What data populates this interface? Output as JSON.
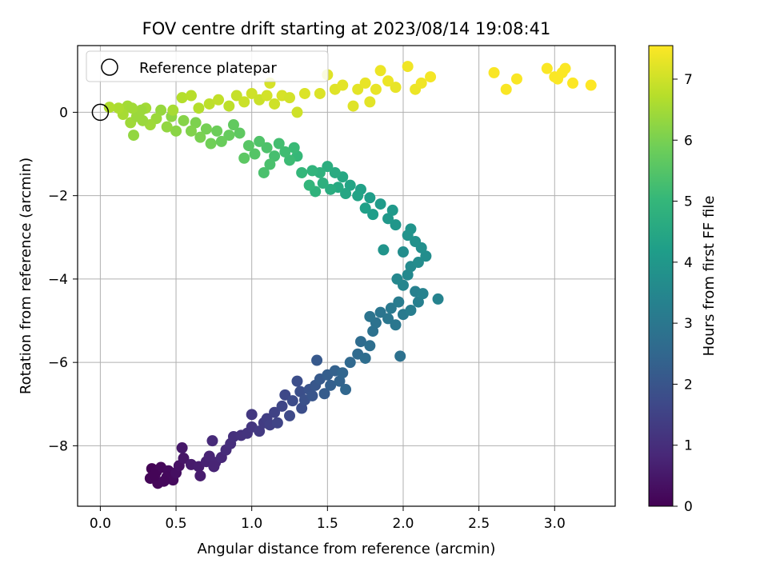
{
  "chart_data": {
    "type": "scatter",
    "title": "FOV centre drift starting at 2023/08/14 19:08:41",
    "xlabel": "Angular distance from reference (arcmin)",
    "ylabel": "Rotation from reference (arcmin)",
    "xlim": [
      -0.15,
      3.4
    ],
    "ylim": [
      -9.45,
      1.6
    ],
    "xticks": [
      0.0,
      0.5,
      1.0,
      1.5,
      2.0,
      2.5,
      3.0
    ],
    "xtick_labels": [
      "0.0",
      "0.5",
      "1.0",
      "1.5",
      "2.0",
      "2.5",
      "3.0"
    ],
    "yticks": [
      0,
      -2,
      -4,
      -6,
      -8
    ],
    "ytick_labels": [
      "0",
      "−2",
      "−4",
      "−6",
      "−8"
    ],
    "grid": true,
    "legend": {
      "position": "top-left",
      "entries": [
        "Reference platepar"
      ]
    },
    "reference_point": {
      "x": 0.0,
      "y": 0.0
    },
    "colorbar": {
      "label": "Hours from first FF file",
      "min": 0,
      "max": 7.55,
      "ticks": [
        0,
        1,
        2,
        3,
        4,
        5,
        6,
        7
      ],
      "tick_labels": [
        "0",
        "1",
        "2",
        "3",
        "4",
        "5",
        "6",
        "7"
      ],
      "colormap": [
        "#440154",
        "#482878",
        "#3e4989",
        "#31688e",
        "#26828e",
        "#1f9e89",
        "#35b779",
        "#6ece58",
        "#b5de2b",
        "#fde725"
      ]
    },
    "colors": {
      "axes": "#000000",
      "grid": "#b0b0b0",
      "background": "#ffffff"
    },
    "points": [
      {
        "x": 0.34,
        "y": -8.55,
        "c": 0.05
      },
      {
        "x": 0.37,
        "y": -8.62,
        "c": 0.1
      },
      {
        "x": 0.4,
        "y": -8.52,
        "c": 0.15
      },
      {
        "x": 0.45,
        "y": -8.6,
        "c": 0.2
      },
      {
        "x": 0.33,
        "y": -8.78,
        "c": 0.1
      },
      {
        "x": 0.38,
        "y": -8.9,
        "c": 0.12
      },
      {
        "x": 0.44,
        "y": -8.75,
        "c": 0.18
      },
      {
        "x": 0.48,
        "y": -8.82,
        "c": 0.22
      },
      {
        "x": 0.5,
        "y": -8.65,
        "c": 0.3
      },
      {
        "x": 0.52,
        "y": -8.48,
        "c": 0.35
      },
      {
        "x": 0.36,
        "y": -8.7,
        "c": 0.08
      },
      {
        "x": 0.42,
        "y": -8.85,
        "c": 0.16
      },
      {
        "x": 0.55,
        "y": -8.3,
        "c": 0.45
      },
      {
        "x": 0.54,
        "y": -8.05,
        "c": 0.5
      },
      {
        "x": 0.6,
        "y": -8.45,
        "c": 0.55
      },
      {
        "x": 0.65,
        "y": -8.5,
        "c": 0.6
      },
      {
        "x": 0.66,
        "y": -8.72,
        "c": 0.58
      },
      {
        "x": 0.7,
        "y": -8.38,
        "c": 0.7
      },
      {
        "x": 0.72,
        "y": -8.25,
        "c": 0.75
      },
      {
        "x": 0.76,
        "y": -8.4,
        "c": 0.8
      },
      {
        "x": 0.8,
        "y": -8.28,
        "c": 0.85
      },
      {
        "x": 0.75,
        "y": -8.5,
        "c": 0.78
      },
      {
        "x": 0.74,
        "y": -7.88,
        "c": 0.9
      },
      {
        "x": 0.83,
        "y": -8.1,
        "c": 0.95
      },
      {
        "x": 0.86,
        "y": -7.95,
        "c": 1.0
      },
      {
        "x": 0.88,
        "y": -7.78,
        "c": 1.05
      },
      {
        "x": 0.93,
        "y": -7.75,
        "c": 1.1
      },
      {
        "x": 0.97,
        "y": -7.7,
        "c": 1.15
      },
      {
        "x": 1.0,
        "y": -7.55,
        "c": 1.2
      },
      {
        "x": 1.0,
        "y": -7.25,
        "c": 1.25
      },
      {
        "x": 1.05,
        "y": -7.65,
        "c": 1.3
      },
      {
        "x": 1.08,
        "y": -7.45,
        "c": 1.35
      },
      {
        "x": 1.1,
        "y": -7.35,
        "c": 1.4
      },
      {
        "x": 1.12,
        "y": -7.5,
        "c": 1.45
      },
      {
        "x": 1.15,
        "y": -7.2,
        "c": 1.5
      },
      {
        "x": 1.17,
        "y": -7.45,
        "c": 1.55
      },
      {
        "x": 1.2,
        "y": -7.05,
        "c": 1.6
      },
      {
        "x": 1.22,
        "y": -6.78,
        "c": 1.65
      },
      {
        "x": 1.25,
        "y": -7.28,
        "c": 1.7
      },
      {
        "x": 1.27,
        "y": -6.92,
        "c": 1.75
      },
      {
        "x": 1.3,
        "y": -6.45,
        "c": 1.8
      },
      {
        "x": 1.32,
        "y": -6.7,
        "c": 1.85
      },
      {
        "x": 1.33,
        "y": -7.1,
        "c": 1.8
      },
      {
        "x": 1.35,
        "y": -6.9,
        "c": 1.9
      },
      {
        "x": 1.38,
        "y": -6.65,
        "c": 1.95
      },
      {
        "x": 1.4,
        "y": -6.8,
        "c": 2.0
      },
      {
        "x": 1.42,
        "y": -6.55,
        "c": 2.05
      },
      {
        "x": 1.43,
        "y": -5.95,
        "c": 2.1
      },
      {
        "x": 1.45,
        "y": -6.4,
        "c": 2.15
      },
      {
        "x": 1.48,
        "y": -6.75,
        "c": 2.2
      },
      {
        "x": 1.5,
        "y": -6.3,
        "c": 2.25
      },
      {
        "x": 1.52,
        "y": -6.55,
        "c": 2.3
      },
      {
        "x": 1.55,
        "y": -6.2,
        "c": 2.35
      },
      {
        "x": 1.58,
        "y": -6.45,
        "c": 2.4
      },
      {
        "x": 1.6,
        "y": -6.25,
        "c": 2.45
      },
      {
        "x": 1.62,
        "y": -6.65,
        "c": 2.5
      },
      {
        "x": 1.65,
        "y": -6.0,
        "c": 2.55
      },
      {
        "x": 1.7,
        "y": -5.8,
        "c": 2.6
      },
      {
        "x": 1.72,
        "y": -5.5,
        "c": 2.65
      },
      {
        "x": 1.75,
        "y": -5.9,
        "c": 2.7
      },
      {
        "x": 1.78,
        "y": -5.6,
        "c": 2.75
      },
      {
        "x": 1.8,
        "y": -5.25,
        "c": 2.8
      },
      {
        "x": 1.82,
        "y": -5.05,
        "c": 2.85
      },
      {
        "x": 1.78,
        "y": -4.9,
        "c": 2.9
      },
      {
        "x": 1.85,
        "y": -4.8,
        "c": 2.95
      },
      {
        "x": 1.9,
        "y": -4.95,
        "c": 3.0
      },
      {
        "x": 1.92,
        "y": -4.7,
        "c": 3.05
      },
      {
        "x": 1.95,
        "y": -5.1,
        "c": 3.0
      },
      {
        "x": 1.98,
        "y": -5.85,
        "c": 2.8
      },
      {
        "x": 2.0,
        "y": -4.85,
        "c": 3.1
      },
      {
        "x": 1.97,
        "y": -4.55,
        "c": 3.15
      },
      {
        "x": 2.05,
        "y": -4.75,
        "c": 3.2
      },
      {
        "x": 2.1,
        "y": -4.55,
        "c": 3.25
      },
      {
        "x": 2.08,
        "y": -4.3,
        "c": 3.3
      },
      {
        "x": 2.13,
        "y": -4.35,
        "c": 3.35
      },
      {
        "x": 2.23,
        "y": -4.48,
        "c": 3.4
      },
      {
        "x": 2.0,
        "y": -4.15,
        "c": 3.45
      },
      {
        "x": 1.96,
        "y": -4.0,
        "c": 3.5
      },
      {
        "x": 2.03,
        "y": -3.9,
        "c": 3.55
      },
      {
        "x": 2.05,
        "y": -3.7,
        "c": 3.6
      },
      {
        "x": 2.1,
        "y": -3.6,
        "c": 3.65
      },
      {
        "x": 2.15,
        "y": -3.45,
        "c": 3.7
      },
      {
        "x": 2.12,
        "y": -3.25,
        "c": 3.75
      },
      {
        "x": 2.08,
        "y": -3.1,
        "c": 3.8
      },
      {
        "x": 2.0,
        "y": -3.35,
        "c": 3.7
      },
      {
        "x": 2.03,
        "y": -2.95,
        "c": 3.85
      },
      {
        "x": 2.05,
        "y": -2.8,
        "c": 3.9
      },
      {
        "x": 1.95,
        "y": -2.7,
        "c": 3.95
      },
      {
        "x": 1.9,
        "y": -2.55,
        "c": 4.0
      },
      {
        "x": 1.87,
        "y": -3.3,
        "c": 3.9
      },
      {
        "x": 1.93,
        "y": -2.35,
        "c": 4.05
      },
      {
        "x": 1.85,
        "y": -2.2,
        "c": 4.1
      },
      {
        "x": 1.8,
        "y": -2.45,
        "c": 4.15
      },
      {
        "x": 1.78,
        "y": -2.05,
        "c": 4.2
      },
      {
        "x": 1.75,
        "y": -2.3,
        "c": 4.25
      },
      {
        "x": 1.72,
        "y": -1.85,
        "c": 4.3
      },
      {
        "x": 1.7,
        "y": -2.0,
        "c": 4.35
      },
      {
        "x": 1.65,
        "y": -1.75,
        "c": 4.4
      },
      {
        "x": 1.62,
        "y": -1.95,
        "c": 4.45
      },
      {
        "x": 1.6,
        "y": -1.55,
        "c": 4.5
      },
      {
        "x": 1.57,
        "y": -1.8,
        "c": 4.55
      },
      {
        "x": 1.55,
        "y": -1.45,
        "c": 4.6
      },
      {
        "x": 1.52,
        "y": -1.85,
        "c": 4.65
      },
      {
        "x": 1.5,
        "y": -1.3,
        "c": 4.7
      },
      {
        "x": 1.47,
        "y": -1.7,
        "c": 4.75
      },
      {
        "x": 1.45,
        "y": -1.45,
        "c": 4.8
      },
      {
        "x": 1.42,
        "y": -1.9,
        "c": 4.85
      },
      {
        "x": 1.4,
        "y": -1.4,
        "c": 4.9
      },
      {
        "x": 1.38,
        "y": -1.75,
        "c": 4.95
      },
      {
        "x": 1.33,
        "y": -1.45,
        "c": 5.0
      },
      {
        "x": 1.3,
        "y": -1.05,
        "c": 5.05
      },
      {
        "x": 1.28,
        "y": -0.85,
        "c": 5.1
      },
      {
        "x": 1.25,
        "y": -1.15,
        "c": 5.15
      },
      {
        "x": 1.22,
        "y": -0.95,
        "c": 5.2
      },
      {
        "x": 1.18,
        "y": -0.75,
        "c": 5.25
      },
      {
        "x": 1.15,
        "y": -1.05,
        "c": 5.3
      },
      {
        "x": 1.12,
        "y": -1.25,
        "c": 5.35
      },
      {
        "x": 1.1,
        "y": -0.85,
        "c": 5.4
      },
      {
        "x": 1.08,
        "y": -1.45,
        "c": 5.35
      },
      {
        "x": 1.05,
        "y": -0.7,
        "c": 5.45
      },
      {
        "x": 1.02,
        "y": -1.0,
        "c": 5.5
      },
      {
        "x": 0.98,
        "y": -0.8,
        "c": 5.55
      },
      {
        "x": 0.95,
        "y": -1.1,
        "c": 5.6
      },
      {
        "x": 0.92,
        "y": -0.5,
        "c": 5.65
      },
      {
        "x": 0.88,
        "y": -0.3,
        "c": 5.7
      },
      {
        "x": 0.85,
        "y": -0.55,
        "c": 5.75
      },
      {
        "x": 0.8,
        "y": -0.7,
        "c": 5.8
      },
      {
        "x": 0.77,
        "y": -0.45,
        "c": 5.85
      },
      {
        "x": 0.73,
        "y": -0.75,
        "c": 5.9
      },
      {
        "x": 0.7,
        "y": -0.4,
        "c": 5.95
      },
      {
        "x": 0.66,
        "y": -0.6,
        "c": 6.0
      },
      {
        "x": 0.63,
        "y": -0.25,
        "c": 6.05
      },
      {
        "x": 0.6,
        "y": -0.45,
        "c": 6.1
      },
      {
        "x": 0.55,
        "y": -0.2,
        "c": 6.15
      },
      {
        "x": 0.5,
        "y": -0.45,
        "c": 6.2
      },
      {
        "x": 0.47,
        "y": -0.1,
        "c": 6.25
      },
      {
        "x": 0.44,
        "y": -0.35,
        "c": 6.3
      },
      {
        "x": 0.4,
        "y": 0.05,
        "c": 6.35
      },
      {
        "x": 0.37,
        "y": -0.15,
        "c": 6.4
      },
      {
        "x": 0.33,
        "y": -0.3,
        "c": 6.45
      },
      {
        "x": 0.3,
        "y": 0.1,
        "c": 6.5
      },
      {
        "x": 0.28,
        "y": -0.2,
        "c": 6.4
      },
      {
        "x": 0.25,
        "y": 0.0,
        "c": 6.35
      },
      {
        "x": 0.22,
        "y": -0.55,
        "c": 6.3
      },
      {
        "x": 0.2,
        "y": -0.25,
        "c": 6.45
      },
      {
        "x": 0.18,
        "y": 0.15,
        "c": 6.5
      },
      {
        "x": 0.15,
        "y": -0.05,
        "c": 6.55
      },
      {
        "x": 0.12,
        "y": 0.1,
        "c": 6.6
      },
      {
        "x": 0.06,
        "y": 0.12,
        "c": 6.65
      },
      {
        "x": 0.24,
        "y": -0.1,
        "c": 6.4
      },
      {
        "x": 0.27,
        "y": 0.05,
        "c": 6.42
      },
      {
        "x": 0.21,
        "y": 0.1,
        "c": 6.48
      },
      {
        "x": 0.48,
        "y": 0.05,
        "c": 6.55
      },
      {
        "x": 0.54,
        "y": 0.35,
        "c": 6.7
      },
      {
        "x": 0.6,
        "y": 0.4,
        "c": 6.75
      },
      {
        "x": 0.65,
        "y": 0.1,
        "c": 6.7
      },
      {
        "x": 0.72,
        "y": 0.2,
        "c": 6.8
      },
      {
        "x": 0.78,
        "y": 0.3,
        "c": 6.85
      },
      {
        "x": 0.85,
        "y": 0.15,
        "c": 6.8
      },
      {
        "x": 0.9,
        "y": 0.4,
        "c": 6.9
      },
      {
        "x": 0.95,
        "y": 0.25,
        "c": 6.95
      },
      {
        "x": 1.0,
        "y": 0.45,
        "c": 7.0
      },
      {
        "x": 1.05,
        "y": 0.3,
        "c": 6.95
      },
      {
        "x": 1.1,
        "y": 0.4,
        "c": 7.05
      },
      {
        "x": 1.12,
        "y": 0.7,
        "c": 7.1
      },
      {
        "x": 1.15,
        "y": 0.2,
        "c": 7.0
      },
      {
        "x": 1.2,
        "y": 0.4,
        "c": 7.1
      },
      {
        "x": 1.25,
        "y": 0.35,
        "c": 7.05
      },
      {
        "x": 1.3,
        "y": 0.0,
        "c": 7.0
      },
      {
        "x": 1.35,
        "y": 0.45,
        "c": 7.15
      },
      {
        "x": 1.45,
        "y": 0.45,
        "c": 7.15
      },
      {
        "x": 1.5,
        "y": 0.9,
        "c": 7.2
      },
      {
        "x": 1.55,
        "y": 0.55,
        "c": 7.2
      },
      {
        "x": 1.6,
        "y": 0.65,
        "c": 7.25
      },
      {
        "x": 1.67,
        "y": 0.15,
        "c": 7.2
      },
      {
        "x": 1.7,
        "y": 0.55,
        "c": 7.25
      },
      {
        "x": 1.75,
        "y": 0.7,
        "c": 7.3
      },
      {
        "x": 1.78,
        "y": 0.25,
        "c": 7.25
      },
      {
        "x": 1.82,
        "y": 0.55,
        "c": 7.3
      },
      {
        "x": 1.85,
        "y": 1.0,
        "c": 7.35
      },
      {
        "x": 1.9,
        "y": 0.75,
        "c": 7.35
      },
      {
        "x": 1.95,
        "y": 0.6,
        "c": 7.3
      },
      {
        "x": 2.03,
        "y": 1.1,
        "c": 7.4
      },
      {
        "x": 2.08,
        "y": 0.55,
        "c": 7.35
      },
      {
        "x": 2.12,
        "y": 0.7,
        "c": 7.4
      },
      {
        "x": 2.18,
        "y": 0.85,
        "c": 7.45
      },
      {
        "x": 2.6,
        "y": 0.95,
        "c": 7.5
      },
      {
        "x": 2.68,
        "y": 0.55,
        "c": 7.5
      },
      {
        "x": 2.75,
        "y": 0.8,
        "c": 7.5
      },
      {
        "x": 2.95,
        "y": 1.05,
        "c": 7.52
      },
      {
        "x": 3.0,
        "y": 0.85,
        "c": 7.52
      },
      {
        "x": 3.02,
        "y": 0.8,
        "c": 7.52
      },
      {
        "x": 3.05,
        "y": 0.95,
        "c": 7.53
      },
      {
        "x": 3.07,
        "y": 1.05,
        "c": 7.53
      },
      {
        "x": 3.12,
        "y": 0.7,
        "c": 7.54
      },
      {
        "x": 3.24,
        "y": 0.65,
        "c": 7.55
      }
    ]
  }
}
